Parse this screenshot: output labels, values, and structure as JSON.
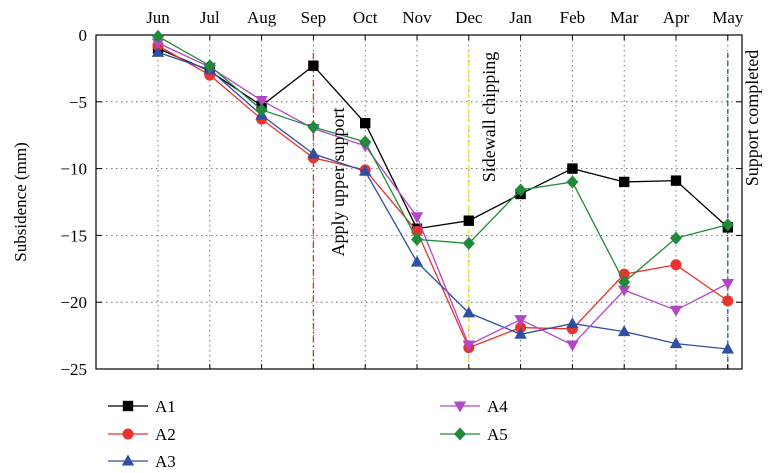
{
  "chart_data": {
    "type": "line",
    "categories": [
      "Jun",
      "Jul",
      "Aug",
      "Sep",
      "Oct",
      "Nov",
      "Dec",
      "Jan",
      "Feb",
      "Mar",
      "Apr",
      "May"
    ],
    "ylabel": "Subsidence (mm)",
    "xlabel": "",
    "title": "",
    "ylim": [
      -25,
      0
    ],
    "yticks": [
      0,
      -5,
      -10,
      -15,
      -20,
      -25
    ],
    "grid": true,
    "legend_position": "bottom-left",
    "series": [
      {
        "name": "A1",
        "color": "#000000",
        "marker": "square",
        "values": [
          -1.0,
          -2.7,
          -5.3,
          -2.3,
          -6.6,
          -14.5,
          -13.9,
          -11.9,
          -10.0,
          -11.0,
          -10.9,
          -14.4
        ]
      },
      {
        "name": "A2",
        "color": "#e8342c",
        "marker": "circle",
        "values": [
          -0.8,
          -3.0,
          -6.3,
          -9.2,
          -10.1,
          -14.7,
          -23.4,
          -21.9,
          -22.0,
          -17.9,
          -17.2,
          -19.9
        ]
      },
      {
        "name": "A3",
        "color": "#2e4fa3",
        "marker": "triangle-up",
        "values": [
          -1.3,
          -2.6,
          -6.0,
          -8.9,
          -10.2,
          -17.0,
          -20.8,
          -22.4,
          -21.6,
          -22.2,
          -23.1,
          -23.5
        ]
      },
      {
        "name": "A4",
        "color": "#b347c7",
        "marker": "triangle-down",
        "values": [
          -0.6,
          -2.4,
          -4.9,
          -7.0,
          -8.3,
          -13.6,
          -23.2,
          -21.3,
          -23.2,
          -19.1,
          -20.6,
          -18.6
        ]
      },
      {
        "name": "A5",
        "color": "#1e8a3a",
        "marker": "diamond",
        "values": [
          -0.1,
          -2.3,
          -5.6,
          -6.9,
          -8.0,
          -15.3,
          -15.6,
          -11.6,
          -11.0,
          -18.5,
          -15.2,
          -14.2
        ]
      }
    ],
    "annotations": [
      {
        "text": "Apply upper support",
        "x_category": "Sep",
        "line_color": "#d63a2a",
        "style": "dash-dot"
      },
      {
        "text": "Sidewall chipping",
        "x_category": "Dec",
        "line_color": "#f2e51a",
        "style": "dashed"
      },
      {
        "text": "Support completed",
        "x_category": "May",
        "line_color": "#3a5fb0",
        "style": "dashed"
      }
    ]
  }
}
